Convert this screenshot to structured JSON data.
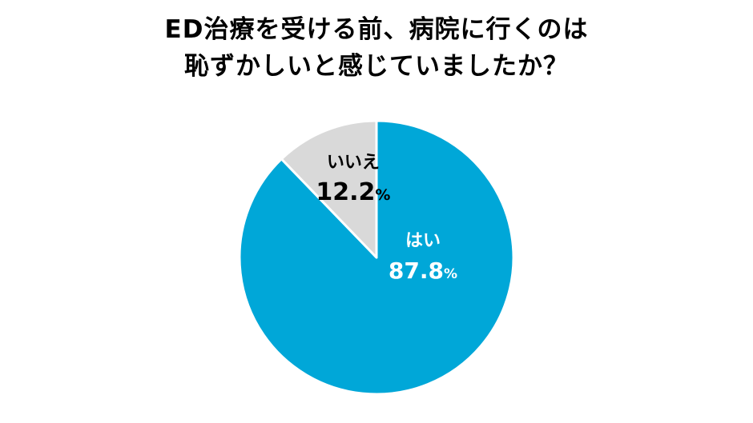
{
  "chart_data": {
    "type": "pie",
    "title_lines": [
      "ED治療を受ける前、病院に行くのは",
      "恥ずかしいと感じていましたか？"
    ],
    "slices": [
      {
        "label": "はい",
        "value": 87.8,
        "value_text": "87.8",
        "unit": "%",
        "color": "#00a7d8",
        "label_color": "#ffffff"
      },
      {
        "label": "いいえ",
        "value": 12.2,
        "value_text": "12.2",
        "unit": "%",
        "color": "#d9d9d9",
        "label_color": "#000000"
      }
    ],
    "start": "12 o'clock",
    "direction": "clockwise",
    "legend": "none"
  }
}
